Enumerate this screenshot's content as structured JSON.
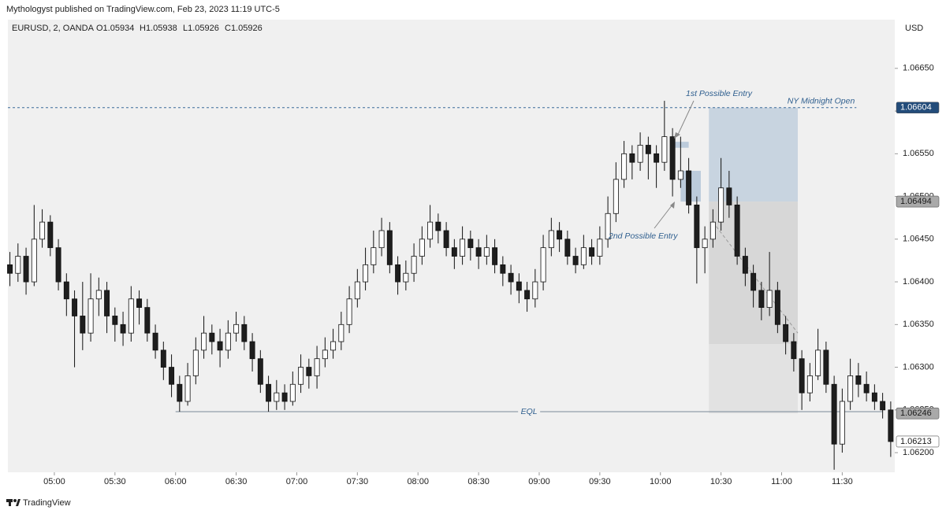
{
  "header": {
    "publisher": "Mythologyst published on TradingView.com, Feb 23, 2023 11:19 UTC-5",
    "symbol": "EURUSD, 2, OANDA",
    "ohlc": [
      "O1.05934",
      "H1.05938",
      "L1.05926",
      "C1.05926"
    ],
    "currency": "USD",
    "brand": "TradingView"
  },
  "chart_data": {
    "type": "candlestick",
    "up_color": "#ffffff",
    "down_color": "#1e1e1e",
    "outline_color": "#111111",
    "x": [
      278,
      282,
      286,
      290,
      294,
      298,
      302,
      306,
      310,
      314,
      318,
      322,
      326,
      330,
      334,
      338,
      342,
      346,
      350,
      354,
      358,
      362,
      366,
      370,
      374,
      378,
      382,
      386,
      390,
      394,
      398,
      402,
      406,
      410,
      414,
      418,
      422,
      426,
      430,
      434,
      438,
      442,
      446,
      450,
      454,
      458,
      462,
      466,
      470,
      474,
      478,
      482,
      486,
      490,
      494,
      498,
      502,
      506,
      510,
      514,
      518,
      522,
      526,
      530,
      534,
      538,
      542,
      546,
      550,
      554,
      558,
      562,
      566,
      570,
      574,
      578,
      582,
      586,
      590,
      594,
      598,
      602,
      606,
      610,
      614,
      618,
      622,
      626,
      630,
      634,
      638,
      642,
      646,
      650,
      654,
      658,
      662,
      666,
      670,
      674,
      678,
      682,
      686,
      690,
      694,
      698,
      702,
      706,
      710,
      714
    ],
    "open": [
      1.0642,
      1.0641,
      1.0643,
      1.064,
      1.0645,
      1.0647,
      1.0644,
      1.064,
      1.0638,
      1.0636,
      1.0634,
      1.0638,
      1.0639,
      1.0636,
      1.0635,
      1.0634,
      1.0638,
      1.0637,
      1.0634,
      1.0632,
      1.063,
      1.0628,
      1.0626,
      1.0629,
      1.0632,
      1.0634,
      1.0633,
      1.0632,
      1.0634,
      1.0635,
      1.0633,
      1.0631,
      1.0628,
      1.0626,
      1.0627,
      1.0626,
      1.0628,
      1.063,
      1.0629,
      1.0631,
      1.0632,
      1.0633,
      1.0635,
      1.0638,
      1.064,
      1.0642,
      1.0644,
      1.0646,
      1.0642,
      1.064,
      1.0641,
      1.0643,
      1.0645,
      1.0647,
      1.0646,
      1.0644,
      1.0643,
      1.0645,
      1.0644,
      1.0643,
      1.0644,
      1.0642,
      1.0641,
      1.064,
      1.0639,
      1.0638,
      1.064,
      1.0644,
      1.0646,
      1.0645,
      1.0643,
      1.0642,
      1.0644,
      1.0643,
      1.0645,
      1.0648,
      1.0652,
      1.0655,
      1.0654,
      1.0656,
      1.0655,
      1.0654,
      1.0657,
      1.0652,
      1.0653,
      1.0649,
      1.0644,
      1.0645,
      1.0647,
      1.0651,
      1.0649,
      1.0643,
      1.0641,
      1.0639,
      1.0637,
      1.0639,
      1.0635,
      1.0633,
      1.0631,
      1.0627,
      1.0629,
      1.0632,
      1.0628,
      1.0621,
      1.0626,
      1.0629,
      1.0628,
      1.0627,
      1.0626,
      1.0625
    ],
    "high": [
      1.06435,
      1.06445,
      1.0644,
      1.0649,
      1.06485,
      1.06478,
      1.0645,
      1.0641,
      1.0639,
      1.064,
      1.0641,
      1.06405,
      1.064,
      1.0637,
      1.06365,
      1.06395,
      1.0639,
      1.0638,
      1.0635,
      1.0633,
      1.06315,
      1.0629,
      1.06305,
      1.06335,
      1.0636,
      1.0635,
      1.06345,
      1.06355,
      1.06365,
      1.0636,
      1.0634,
      1.0632,
      1.0629,
      1.06285,
      1.0628,
      1.06295,
      1.06315,
      1.0631,
      1.06325,
      1.06335,
      1.06345,
      1.06365,
      1.06395,
      1.06415,
      1.0644,
      1.0646,
      1.06475,
      1.0647,
      1.0643,
      1.06425,
      1.06445,
      1.06465,
      1.0649,
      1.0648,
      1.0647,
      1.0645,
      1.06465,
      1.0646,
      1.0645,
      1.06455,
      1.0645,
      1.0643,
      1.0642,
      1.0641,
      1.064,
      1.06415,
      1.06455,
      1.06475,
      1.0647,
      1.0646,
      1.0644,
      1.06455,
      1.0645,
      1.06465,
      1.065,
      1.0654,
      1.06565,
      1.0656,
      1.06575,
      1.0657,
      1.0656,
      1.06612,
      1.0658,
      1.0657,
      1.06545,
      1.065,
      1.06465,
      1.06485,
      1.06545,
      1.0653,
      1.065,
      1.0644,
      1.0642,
      1.064,
      1.06435,
      1.064,
      1.0636,
      1.0634,
      1.0632,
      1.06305,
      1.06345,
      1.0633,
      1.0629,
      1.06275,
      1.0631,
      1.06305,
      1.06295,
      1.0628,
      1.0627,
      1.0626
    ],
    "low": [
      1.06395,
      1.064,
      1.06385,
      1.06395,
      1.0644,
      1.0643,
      1.0639,
      1.0636,
      1.063,
      1.0632,
      1.0633,
      1.0636,
      1.0634,
      1.0633,
      1.06325,
      1.0633,
      1.0635,
      1.0633,
      1.0631,
      1.06285,
      1.06265,
      1.06248,
      1.06255,
      1.0628,
      1.0631,
      1.06315,
      1.063,
      1.0631,
      1.0633,
      1.0632,
      1.06295,
      1.0627,
      1.06248,
      1.0625,
      1.0625,
      1.06255,
      1.0627,
      1.06275,
      1.06275,
      1.063,
      1.0631,
      1.0632,
      1.0634,
      1.0637,
      1.0639,
      1.0641,
      1.0643,
      1.0641,
      1.06385,
      1.0639,
      1.064,
      1.0642,
      1.0644,
      1.06445,
      1.0643,
      1.06415,
      1.0642,
      1.06425,
      1.06415,
      1.0642,
      1.0641,
      1.06395,
      1.06385,
      1.06375,
      1.06365,
      1.0637,
      1.0639,
      1.0643,
      1.06435,
      1.0642,
      1.0641,
      1.06415,
      1.0642,
      1.0642,
      1.0644,
      1.0647,
      1.0651,
      1.0652,
      1.0653,
      1.0652,
      1.0651,
      1.0653,
      1.065,
      1.0651,
      1.0648,
      1.06398,
      1.0641,
      1.0644,
      1.0646,
      1.06475,
      1.0642,
      1.06395,
      1.0637,
      1.06355,
      1.0636,
      1.0634,
      1.06315,
      1.06295,
      1.0625,
      1.0626,
      1.06285,
      1.0627,
      1.0618,
      1.062,
      1.0625,
      1.06265,
      1.0626,
      1.0625,
      1.0624,
      1.06195
    ],
    "close": [
      1.0641,
      1.0643,
      1.064,
      1.0645,
      1.0647,
      1.0644,
      1.064,
      1.0638,
      1.0636,
      1.0634,
      1.0638,
      1.0639,
      1.0636,
      1.0635,
      1.0634,
      1.0638,
      1.0637,
      1.0634,
      1.0632,
      1.063,
      1.0628,
      1.0626,
      1.0629,
      1.0632,
      1.0634,
      1.0633,
      1.0632,
      1.0634,
      1.0635,
      1.0633,
      1.0631,
      1.0628,
      1.0626,
      1.0627,
      1.0626,
      1.0628,
      1.063,
      1.0629,
      1.0631,
      1.0632,
      1.0633,
      1.0635,
      1.0638,
      1.064,
      1.0642,
      1.0644,
      1.0646,
      1.0642,
      1.064,
      1.0641,
      1.0643,
      1.0645,
      1.0647,
      1.0646,
      1.0644,
      1.0643,
      1.0645,
      1.0644,
      1.0643,
      1.0644,
      1.0642,
      1.0641,
      1.064,
      1.0639,
      1.0638,
      1.064,
      1.0644,
      1.0646,
      1.0645,
      1.0643,
      1.0642,
      1.0644,
      1.0643,
      1.0645,
      1.0648,
      1.0652,
      1.0655,
      1.0654,
      1.0656,
      1.0655,
      1.0654,
      1.0657,
      1.0652,
      1.0653,
      1.0649,
      1.0644,
      1.0645,
      1.0647,
      1.0651,
      1.0649,
      1.0643,
      1.0641,
      1.0639,
      1.0637,
      1.0639,
      1.0635,
      1.0633,
      1.0631,
      1.0627,
      1.0629,
      1.0632,
      1.0628,
      1.0621,
      1.0626,
      1.0629,
      1.0628,
      1.0627,
      1.0626,
      1.0625,
      1.06213
    ],
    "xlim": [
      277,
      716
    ],
    "ylim": [
      1.06177,
      1.06707
    ],
    "xticks": [
      {
        "value": 300,
        "label": "05:00"
      },
      {
        "value": 330,
        "label": "05:30"
      },
      {
        "value": 360,
        "label": "06:00"
      },
      {
        "value": 390,
        "label": "06:30"
      },
      {
        "value": 420,
        "label": "07:00"
      },
      {
        "value": 450,
        "label": "07:30"
      },
      {
        "value": 480,
        "label": "08:00"
      },
      {
        "value": 510,
        "label": "08:30"
      },
      {
        "value": 540,
        "label": "09:00"
      },
      {
        "value": 570,
        "label": "09:30"
      },
      {
        "value": 600,
        "label": "10:00"
      },
      {
        "value": 630,
        "label": "10:30"
      },
      {
        "value": 660,
        "label": "11:00"
      },
      {
        "value": 690,
        "label": "11:30"
      }
    ],
    "yticks": [
      {
        "value": 1.062,
        "label": "1.06200"
      },
      {
        "value": 1.0625,
        "label": "1.06250"
      },
      {
        "value": 1.063,
        "label": "1.06300"
      },
      {
        "value": 1.0635,
        "label": "1.06350"
      },
      {
        "value": 1.064,
        "label": "1.06400"
      },
      {
        "value": 1.0645,
        "label": "1.06450"
      },
      {
        "value": 1.065,
        "label": "1.06500"
      },
      {
        "value": 1.0655,
        "label": "1.06550"
      },
      {
        "value": 1.066,
        "label": "1.06600"
      },
      {
        "value": 1.0665,
        "label": "1.06650"
      }
    ],
    "zones": [
      {
        "from": 624,
        "to": 668,
        "top": 1.06604,
        "bottom": 1.06494,
        "color": "#c3d0de"
      },
      {
        "from": 624,
        "to": 668,
        "top": 1.06494,
        "bottom": 1.06327,
        "color": "#d4d4d4"
      },
      {
        "from": 624,
        "to": 668,
        "top": 1.06327,
        "bottom": 1.06246,
        "color": "#e0e0e0"
      },
      {
        "from": 610,
        "to": 620,
        "top": 1.0653,
        "bottom": 1.06494,
        "color": "#b6c6d8"
      },
      {
        "from": 606,
        "to": 614,
        "top": 1.06564,
        "bottom": 1.06557,
        "color": "#b6c6d8"
      }
    ],
    "levels": [
      {
        "label": "NY Midnight Open",
        "value": 1.06604,
        "from": 277,
        "to": 697,
        "color": "#3a6a9a",
        "dash": true
      },
      {
        "label": "EQL",
        "value": 1.06248,
        "from": 360,
        "to": 710,
        "color": "#7a8a99",
        "dash": false
      }
    ],
    "trend": {
      "x": [
        626,
        668
      ],
      "y": [
        1.0647,
        1.0634
      ],
      "color": "#999999"
    },
    "annotations": [
      "1st Possible Entry",
      "2nd Possible Entry"
    ],
    "price_labels": [
      {
        "value": 1.06604,
        "bg": "#234c7a",
        "fg": "#ffffff"
      },
      {
        "value": 1.06494,
        "bg": "#a9a9a9",
        "fg": "#1a1a1a"
      },
      {
        "value": 1.06246,
        "bg": "#a9a9a9",
        "fg": "#1a1a1a"
      },
      {
        "value": 1.06213,
        "bg": "#ffffff",
        "fg": "#1a1a1a"
      }
    ]
  }
}
